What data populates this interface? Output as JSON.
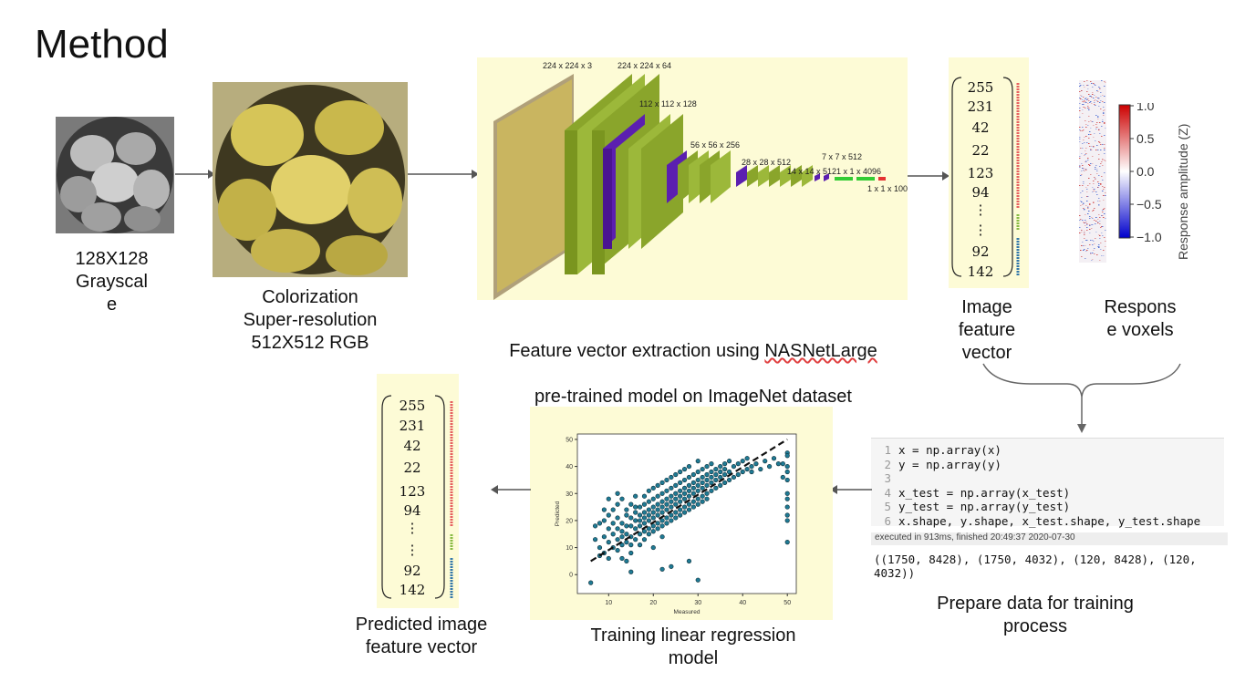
{
  "title": "Method",
  "captions": {
    "grayscale": "128X128\nGrayscal\ne",
    "colorization": "Colorization\nSuper-resolution\n512X512 RGB",
    "extraction_line1_prefix": "Feature vector extraction using ",
    "extraction_line1_model": "NASNetLarge",
    "extraction_line2": "pre-trained model on ImageNet dataset",
    "image_feature_vector": "Image\nfeature\nvector",
    "response_voxels": "Respons\ne voxels",
    "prepare_data": "Prepare data for training\nprocess",
    "training": "Training linear regression\nmodel",
    "predicted_vector": "Predicted image\nfeature vector"
  },
  "cnn_layers": [
    "224 x 224 x 3",
    "224 x 224 x 64",
    "112 x 112 x 128",
    "56 x 56 x 256",
    "28 x 28 x 512",
    "14 x 14 x 512",
    "7 x 7 x 512",
    "1 x 1 x 4096",
    "1 x 1 x 1000"
  ],
  "feature_vector": [
    "255",
    "231",
    "42",
    "22",
    "123",
    "94",
    "⋮",
    "⋮",
    "92",
    "142"
  ],
  "colorbar": {
    "label": "Response amplitude (Z)",
    "ticks": [
      "1.0",
      "0.5",
      "0.0",
      "−0.5",
      "−1.0"
    ],
    "colors": {
      "high": "#cc0000",
      "mid": "#ffffff",
      "low": "#0000cc"
    }
  },
  "code": {
    "lines": [
      {
        "n": "1",
        "text": "x = np.array(x)"
      },
      {
        "n": "2",
        "text": "y = np.array(y)"
      },
      {
        "n": "3",
        "text": ""
      },
      {
        "n": "4",
        "text": "x_test = np.array(x_test)"
      },
      {
        "n": "5",
        "text": "y_test = np.array(y_test)"
      },
      {
        "n": "6",
        "text": "x.shape, y.shape, x_test.shape, y_test.shape"
      }
    ],
    "status": "executed in 913ms, finished 20:49:37 2020-07-30",
    "output": "((1750, 8428), (1750, 4032), (120, 8428), (120, 4032))"
  },
  "chart_data": {
    "type": "scatter",
    "xlabel": "Measured",
    "ylabel": "Predicted",
    "xlim": [
      3,
      52
    ],
    "ylim": [
      -7,
      52
    ],
    "xticks": [
      10,
      20,
      30,
      40,
      50
    ],
    "yticks": [
      0,
      10,
      20,
      30,
      40,
      50
    ],
    "fit_line": [
      [
        6,
        5
      ],
      [
        50,
        50
      ]
    ],
    "points_description_free": true,
    "points": [
      [
        6,
        -3
      ],
      [
        7,
        18
      ],
      [
        7,
        13
      ],
      [
        8,
        10
      ],
      [
        8,
        19
      ],
      [
        8,
        7
      ],
      [
        9,
        8
      ],
      [
        9,
        20
      ],
      [
        9,
        14
      ],
      [
        10,
        12
      ],
      [
        10,
        17
      ],
      [
        10,
        22
      ],
      [
        10,
        6
      ],
      [
        11,
        15
      ],
      [
        11,
        10
      ],
      [
        11,
        19
      ],
      [
        11,
        24
      ],
      [
        12,
        13
      ],
      [
        12,
        17
      ],
      [
        12,
        9
      ],
      [
        12,
        21
      ],
      [
        12,
        26
      ],
      [
        13,
        11
      ],
      [
        13,
        16
      ],
      [
        13,
        19
      ],
      [
        13,
        14
      ],
      [
        13,
        28
      ],
      [
        13,
        6
      ],
      [
        14,
        18
      ],
      [
        14,
        12
      ],
      [
        14,
        22
      ],
      [
        14,
        15
      ],
      [
        14,
        24
      ],
      [
        15,
        14
      ],
      [
        15,
        18
      ],
      [
        15,
        21
      ],
      [
        15,
        11
      ],
      [
        15,
        26
      ],
      [
        15,
        8
      ],
      [
        16,
        17
      ],
      [
        16,
        20
      ],
      [
        16,
        23
      ],
      [
        16,
        13
      ],
      [
        16,
        25
      ],
      [
        16,
        29
      ],
      [
        17,
        18
      ],
      [
        17,
        22
      ],
      [
        17,
        15
      ],
      [
        17,
        25
      ],
      [
        17,
        20
      ],
      [
        17,
        11
      ],
      [
        18,
        19
      ],
      [
        18,
        23
      ],
      [
        18,
        26
      ],
      [
        18,
        16
      ],
      [
        18,
        21
      ],
      [
        18,
        29
      ],
      [
        18,
        13
      ],
      [
        19,
        20
      ],
      [
        19,
        24
      ],
      [
        19,
        17
      ],
      [
        19,
        22
      ],
      [
        19,
        27
      ],
      [
        19,
        31
      ],
      [
        19,
        15
      ],
      [
        20,
        21
      ],
      [
        20,
        25
      ],
      [
        20,
        18
      ],
      [
        20,
        23
      ],
      [
        20,
        28
      ],
      [
        20,
        16
      ],
      [
        20,
        32
      ],
      [
        20,
        10
      ],
      [
        21,
        22
      ],
      [
        21,
        26
      ],
      [
        21,
        19
      ],
      [
        21,
        24
      ],
      [
        21,
        29
      ],
      [
        21,
        17
      ],
      [
        21,
        33
      ],
      [
        22,
        23
      ],
      [
        22,
        27
      ],
      [
        22,
        20
      ],
      [
        22,
        25
      ],
      [
        22,
        30
      ],
      [
        22,
        18
      ],
      [
        22,
        34
      ],
      [
        22,
        14
      ],
      [
        23,
        24
      ],
      [
        23,
        28
      ],
      [
        23,
        21
      ],
      [
        23,
        26
      ],
      [
        23,
        31
      ],
      [
        23,
        19
      ],
      [
        23,
        35
      ],
      [
        24,
        25
      ],
      [
        24,
        29
      ],
      [
        24,
        22
      ],
      [
        24,
        27
      ],
      [
        24,
        32
      ],
      [
        24,
        20
      ],
      [
        24,
        36
      ],
      [
        24,
        3
      ],
      [
        25,
        26
      ],
      [
        25,
        30
      ],
      [
        25,
        23
      ],
      [
        25,
        28
      ],
      [
        25,
        33
      ],
      [
        25,
        21
      ],
      [
        25,
        37
      ],
      [
        26,
        27
      ],
      [
        26,
        31
      ],
      [
        26,
        24
      ],
      [
        26,
        29
      ],
      [
        26,
        34
      ],
      [
        26,
        22
      ],
      [
        26,
        38
      ],
      [
        27,
        28
      ],
      [
        27,
        32
      ],
      [
        27,
        25
      ],
      [
        27,
        30
      ],
      [
        27,
        35
      ],
      [
        27,
        23
      ],
      [
        27,
        39
      ],
      [
        28,
        29
      ],
      [
        28,
        33
      ],
      [
        28,
        26
      ],
      [
        28,
        31
      ],
      [
        28,
        36
      ],
      [
        28,
        24
      ],
      [
        28,
        40
      ],
      [
        29,
        30
      ],
      [
        29,
        34
      ],
      [
        29,
        27
      ],
      [
        29,
        32
      ],
      [
        29,
        37
      ],
      [
        29,
        25
      ],
      [
        30,
        31
      ],
      [
        30,
        35
      ],
      [
        30,
        28
      ],
      [
        30,
        33
      ],
      [
        30,
        38
      ],
      [
        30,
        26
      ],
      [
        30,
        42
      ],
      [
        31,
        32
      ],
      [
        31,
        36
      ],
      [
        31,
        29
      ],
      [
        31,
        34
      ],
      [
        31,
        39
      ],
      [
        31,
        27
      ],
      [
        32,
        33
      ],
      [
        32,
        37
      ],
      [
        32,
        30
      ],
      [
        32,
        35
      ],
      [
        32,
        40
      ],
      [
        32,
        28
      ],
      [
        33,
        34
      ],
      [
        33,
        38
      ],
      [
        33,
        31
      ],
      [
        33,
        36
      ],
      [
        33,
        41
      ],
      [
        34,
        35
      ],
      [
        34,
        39
      ],
      [
        34,
        32
      ],
      [
        34,
        37
      ],
      [
        35,
        36
      ],
      [
        35,
        40
      ],
      [
        35,
        33
      ],
      [
        35,
        38
      ],
      [
        36,
        37
      ],
      [
        36,
        41
      ],
      [
        36,
        34
      ],
      [
        36,
        39
      ],
      [
        37,
        38
      ],
      [
        37,
        42
      ],
      [
        37,
        35
      ],
      [
        38,
        36
      ],
      [
        38,
        40
      ],
      [
        39,
        41
      ],
      [
        39,
        37
      ],
      [
        40,
        38
      ],
      [
        40,
        42
      ],
      [
        41,
        39
      ],
      [
        41,
        43
      ],
      [
        42,
        40
      ],
      [
        42,
        38
      ],
      [
        43,
        41
      ],
      [
        44,
        39
      ],
      [
        45,
        42
      ],
      [
        46,
        40
      ],
      [
        47,
        43
      ],
      [
        48,
        41
      ],
      [
        50,
        45
      ],
      [
        50,
        40
      ],
      [
        50,
        35
      ],
      [
        50,
        30
      ],
      [
        50,
        25
      ],
      [
        50,
        20
      ],
      [
        50,
        12
      ],
      [
        50,
        44
      ],
      [
        50,
        38
      ],
      [
        50,
        28
      ],
      [
        50,
        22
      ],
      [
        49,
        41
      ],
      [
        49,
        36
      ],
      [
        28,
        5
      ],
      [
        30,
        -2
      ],
      [
        22,
        2
      ],
      [
        15,
        1
      ],
      [
        12,
        30
      ],
      [
        10,
        28
      ],
      [
        9,
        24
      ],
      [
        14,
        5
      ]
    ]
  }
}
